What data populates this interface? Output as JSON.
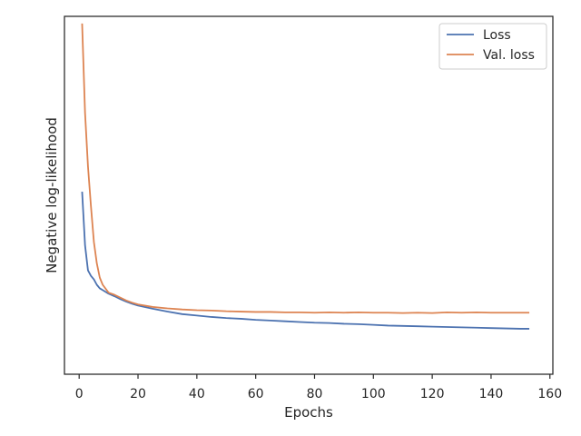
{
  "chart_data": {
    "type": "line",
    "title": "",
    "xlabel": "Epochs",
    "ylabel": "Negative log-likelihood",
    "xlim": [
      -5,
      161
    ],
    "ylim": [
      0.0,
      1.0
    ],
    "y_ticks_shown": false,
    "x_ticks": [
      0,
      20,
      40,
      60,
      80,
      100,
      120,
      140,
      160
    ],
    "x_tick_labels": [
      "0",
      "20",
      "40",
      "60",
      "80",
      "100",
      "120",
      "140",
      "160"
    ],
    "grid": false,
    "legend": {
      "position": "top-right",
      "entries": [
        "Loss",
        "Val. loss"
      ]
    },
    "series": [
      {
        "name": "Loss",
        "color": "#4c72b0",
        "x": [
          1,
          2,
          3,
          4,
          5,
          6,
          7,
          8,
          10,
          12,
          14,
          16,
          18,
          20,
          25,
          30,
          35,
          40,
          45,
          50,
          55,
          60,
          65,
          70,
          75,
          80,
          85,
          90,
          95,
          100,
          105,
          110,
          115,
          120,
          125,
          130,
          135,
          140,
          145,
          150,
          153
        ],
        "y": [
          0.51,
          0.36,
          0.29,
          0.275,
          0.265,
          0.25,
          0.24,
          0.235,
          0.225,
          0.218,
          0.21,
          0.203,
          0.197,
          0.192,
          0.183,
          0.175,
          0.168,
          0.164,
          0.16,
          0.157,
          0.155,
          0.152,
          0.15,
          0.148,
          0.146,
          0.144,
          0.143,
          0.141,
          0.14,
          0.138,
          0.136,
          0.135,
          0.134,
          0.133,
          0.132,
          0.131,
          0.13,
          0.129,
          0.128,
          0.127,
          0.127
        ]
      },
      {
        "name": "Val. loss",
        "color": "#dd8452",
        "x": [
          1,
          2,
          3,
          4,
          5,
          6,
          7,
          8,
          10,
          12,
          14,
          16,
          18,
          20,
          25,
          30,
          35,
          40,
          45,
          50,
          55,
          60,
          65,
          70,
          75,
          80,
          85,
          90,
          95,
          100,
          105,
          110,
          115,
          120,
          125,
          130,
          135,
          140,
          145,
          150,
          153
        ],
        "y": [
          0.98,
          0.73,
          0.58,
          0.47,
          0.37,
          0.31,
          0.27,
          0.25,
          0.228,
          0.222,
          0.214,
          0.206,
          0.2,
          0.195,
          0.188,
          0.184,
          0.181,
          0.179,
          0.178,
          0.176,
          0.175,
          0.174,
          0.174,
          0.173,
          0.173,
          0.172,
          0.173,
          0.172,
          0.173,
          0.172,
          0.172,
          0.171,
          0.172,
          0.171,
          0.173,
          0.172,
          0.173,
          0.172,
          0.172,
          0.172,
          0.172
        ]
      }
    ]
  }
}
